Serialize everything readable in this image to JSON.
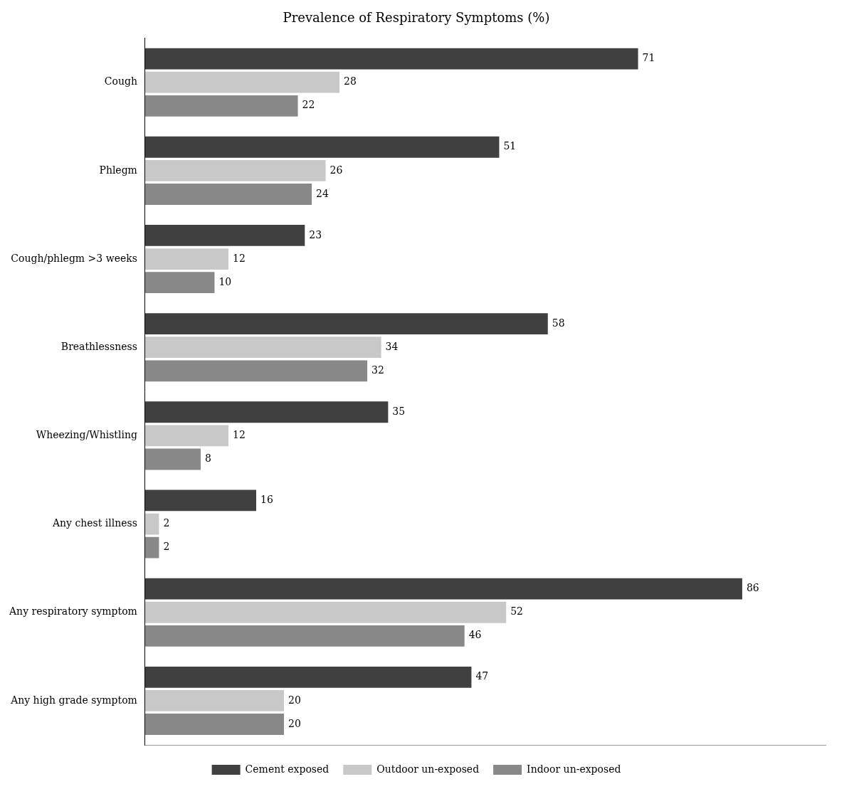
{
  "chart_data": {
    "type": "bar",
    "orientation": "horizontal",
    "title": "Prevalence of Respiratory Symptoms (%)",
    "categories": [
      "Cough",
      "Phlegm",
      "Cough/phlegm >3 weeks",
      "Breathlessness",
      "Wheezing/Whistling",
      "Any chest illness",
      "Any respiratory symptom",
      "Any high grade symptom"
    ],
    "series": [
      {
        "name": "Cement exposed",
        "color": "#404040",
        "values": [
          71,
          51,
          23,
          58,
          35,
          16,
          86,
          47
        ]
      },
      {
        "name": "Outdoor un-exposed",
        "color": "#c8c8c8",
        "values": [
          28,
          26,
          12,
          34,
          12,
          2,
          52,
          20
        ]
      },
      {
        "name": "Indoor un-exposed",
        "color": "#888888",
        "values": [
          22,
          24,
          10,
          32,
          8,
          2,
          46,
          20
        ]
      }
    ],
    "xlim": [
      0,
      98
    ],
    "data_labels": true,
    "tick_labels": "y",
    "grid": false,
    "legend": "bottom"
  }
}
